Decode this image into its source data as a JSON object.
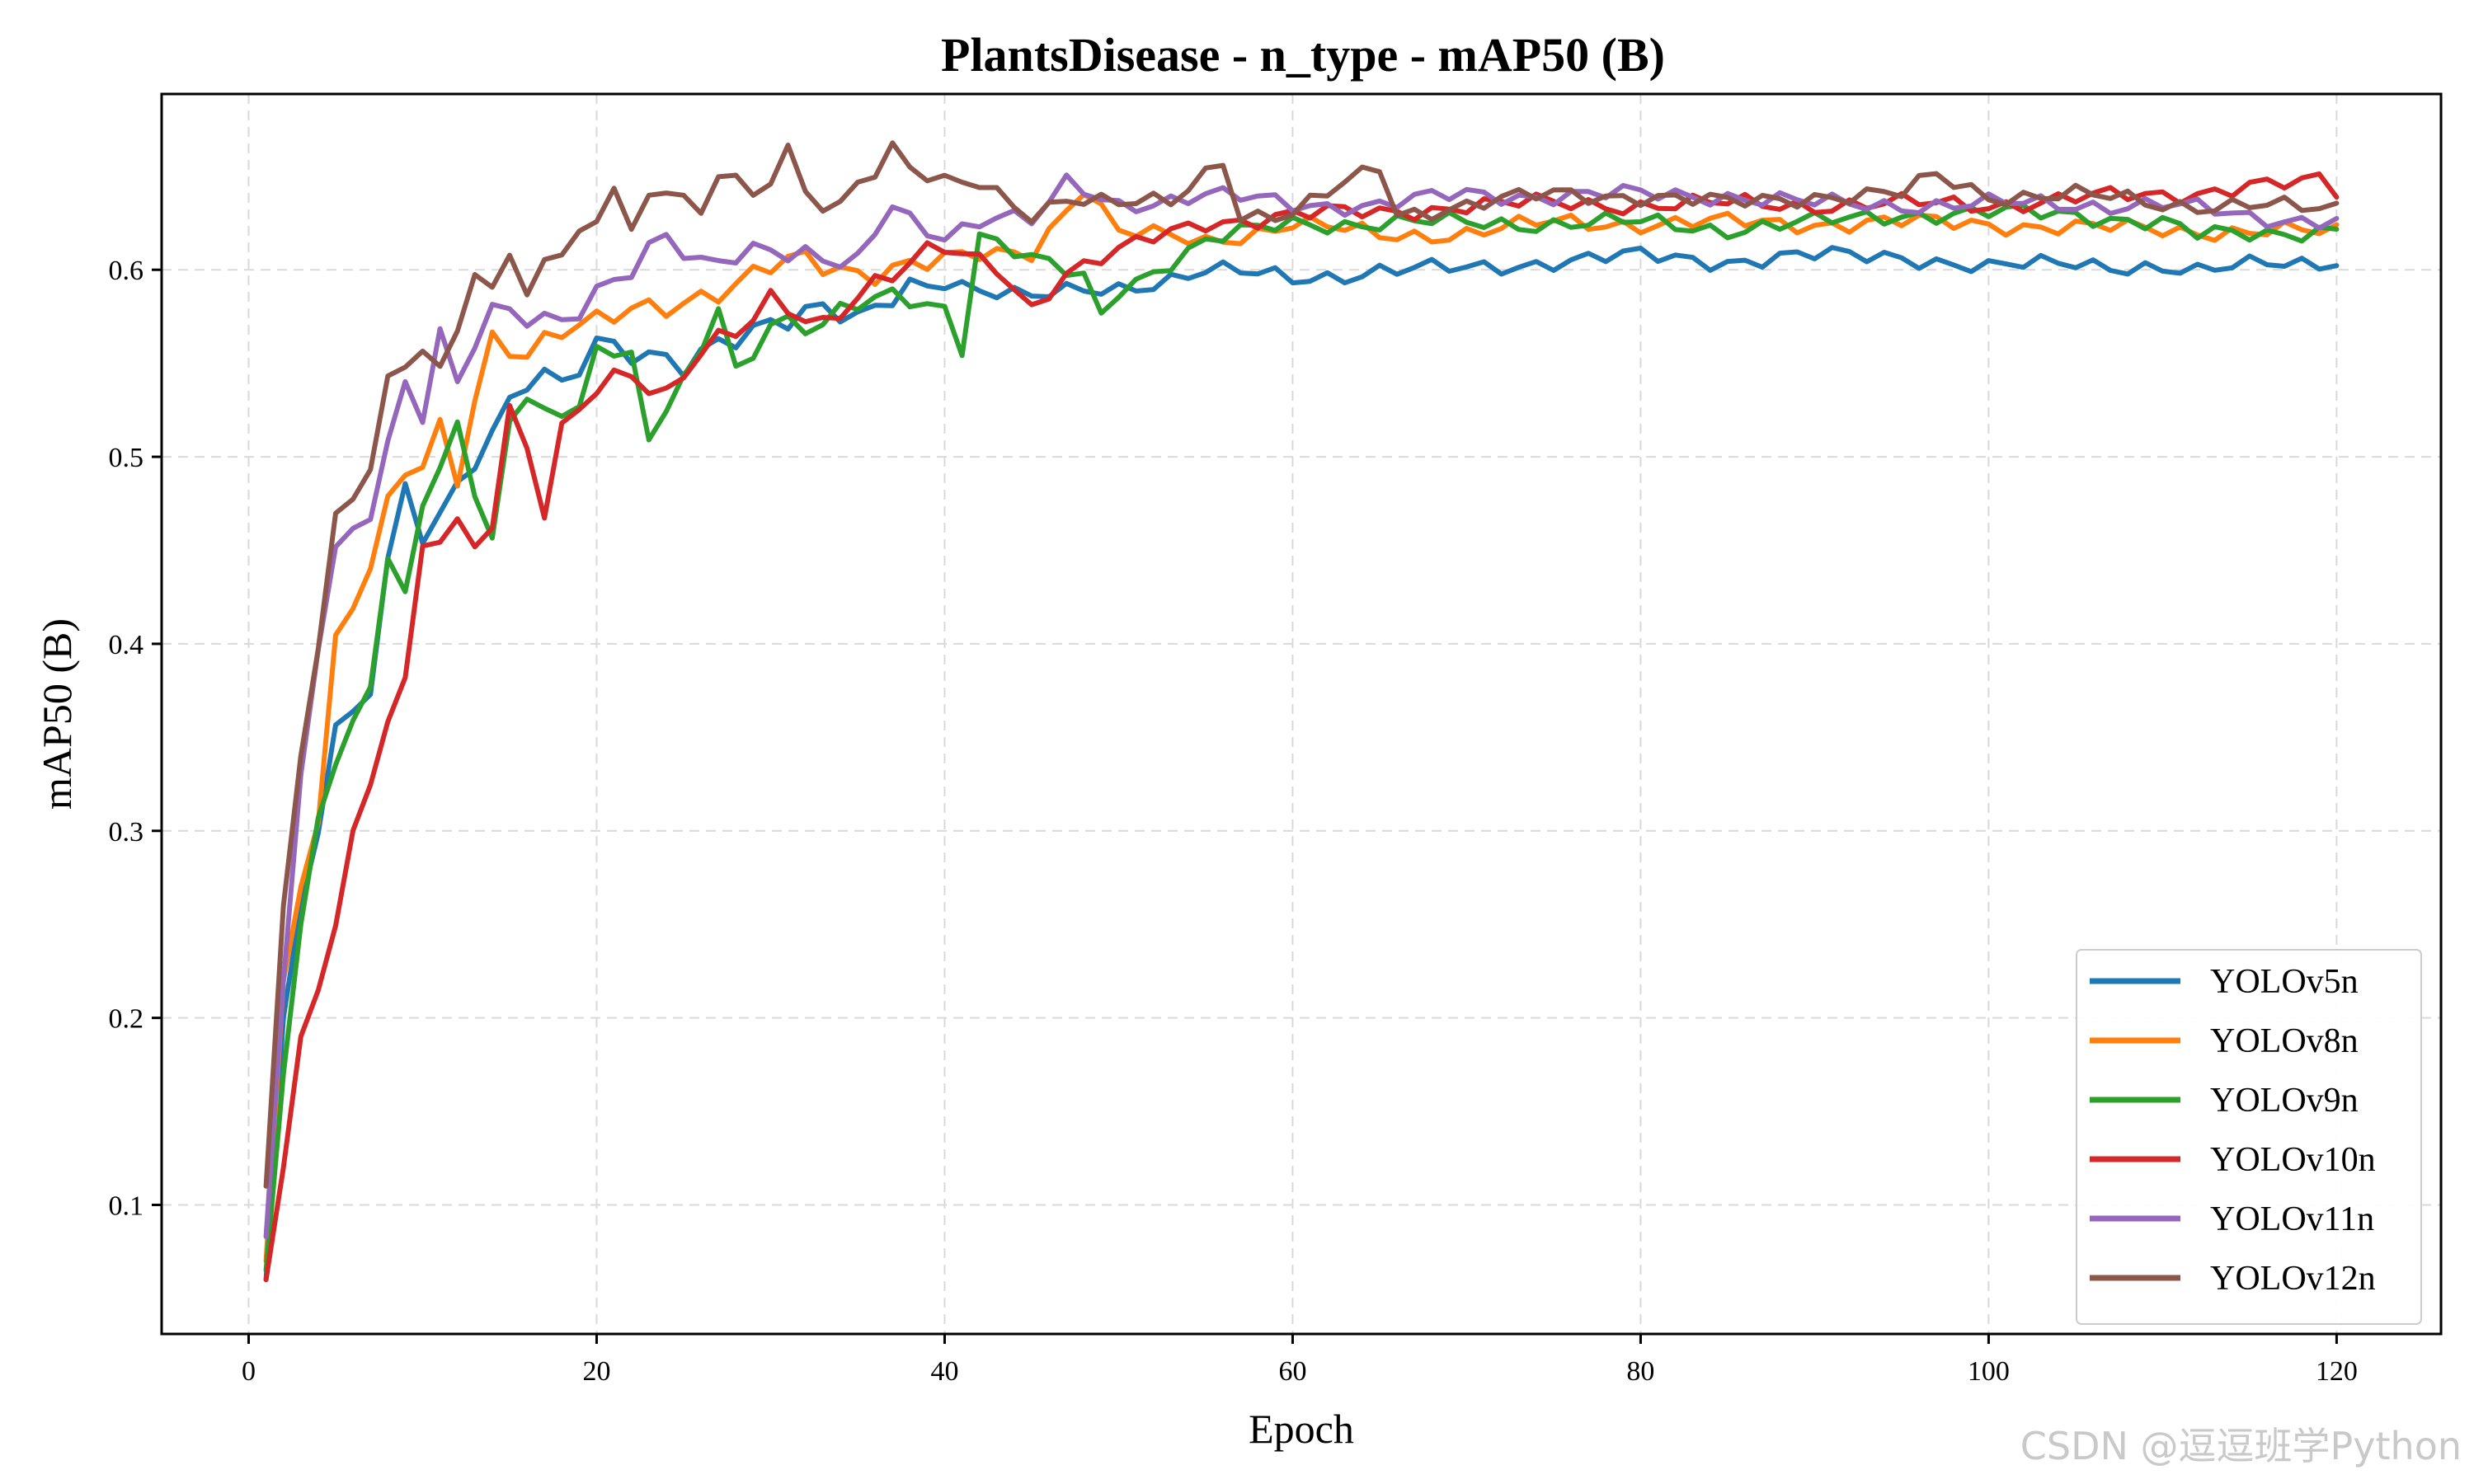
{
  "chart_data": {
    "type": "line",
    "title": "PlantsDisease - n_type - mAP50 (B)",
    "xlabel": "Epoch",
    "ylabel": "mAP50 (B)",
    "xlim": [
      -5,
      126
    ],
    "ylim": [
      0.031,
      0.694
    ],
    "x_ticks": [
      0,
      20,
      40,
      60,
      80,
      100,
      120
    ],
    "y_ticks": [
      0.1,
      0.2,
      0.3,
      0.4,
      0.5,
      0.6
    ],
    "grid": true,
    "legend_position": "lower-right",
    "series": [
      {
        "name": "YOLOv5n",
        "color": "#1f77b4",
        "anchors": [
          [
            1,
            0.06
          ],
          [
            2,
            0.2
          ],
          [
            3,
            0.26
          ],
          [
            4,
            0.3
          ],
          [
            5,
            0.357
          ],
          [
            6,
            0.36
          ],
          [
            7,
            0.38
          ],
          [
            8,
            0.45
          ],
          [
            9,
            0.484
          ],
          [
            10,
            0.46
          ],
          [
            12,
            0.48
          ],
          [
            14,
            0.51
          ],
          [
            16,
            0.54
          ],
          [
            17,
            0.547
          ],
          [
            18,
            0.54
          ],
          [
            20,
            0.565
          ],
          [
            22,
            0.555
          ],
          [
            25,
            0.545
          ],
          [
            27,
            0.56
          ],
          [
            30,
            0.575
          ],
          [
            33,
            0.58
          ],
          [
            35,
            0.57
          ],
          [
            38,
            0.59
          ],
          [
            40,
            0.595
          ],
          [
            45,
            0.585
          ],
          [
            50,
            0.59
          ],
          [
            55,
            0.6
          ],
          [
            60,
            0.595
          ],
          [
            65,
            0.6
          ],
          [
            70,
            0.6
          ],
          [
            75,
            0.605
          ],
          [
            80,
            0.607
          ],
          [
            85,
            0.605
          ],
          [
            90,
            0.607
          ],
          [
            95,
            0.608
          ],
          [
            100,
            0.6
          ],
          [
            105,
            0.605
          ],
          [
            110,
            0.6
          ],
          [
            112,
            0.597
          ],
          [
            116,
            0.606
          ],
          [
            120,
            0.604
          ]
        ]
      },
      {
        "name": "YOLOv8n",
        "color": "#ff7f0e",
        "anchors": [
          [
            1,
            0.07
          ],
          [
            2,
            0.22
          ],
          [
            3,
            0.27
          ],
          [
            4,
            0.31
          ],
          [
            5,
            0.4
          ],
          [
            6,
            0.42
          ],
          [
            7,
            0.44
          ],
          [
            8,
            0.47
          ],
          [
            9,
            0.49
          ],
          [
            10,
            0.495
          ],
          [
            11,
            0.515
          ],
          [
            12,
            0.49
          ],
          [
            13,
            0.535
          ],
          [
            14,
            0.565
          ],
          [
            16,
            0.555
          ],
          [
            18,
            0.565
          ],
          [
            20,
            0.57
          ],
          [
            22,
            0.58
          ],
          [
            25,
            0.585
          ],
          [
            28,
            0.59
          ],
          [
            30,
            0.6
          ],
          [
            32,
            0.605
          ],
          [
            35,
            0.6
          ],
          [
            40,
            0.605
          ],
          [
            45,
            0.61
          ],
          [
            48,
            0.645
          ],
          [
            50,
            0.62
          ],
          [
            55,
            0.615
          ],
          [
            60,
            0.625
          ],
          [
            65,
            0.618
          ],
          [
            70,
            0.62
          ],
          [
            75,
            0.625
          ],
          [
            80,
            0.625
          ],
          [
            85,
            0.625
          ],
          [
            90,
            0.625
          ],
          [
            95,
            0.625
          ],
          [
            100,
            0.625
          ],
          [
            105,
            0.622
          ],
          [
            110,
            0.622
          ],
          [
            115,
            0.62
          ],
          [
            120,
            0.62
          ]
        ]
      },
      {
        "name": "YOLOv9n",
        "color": "#2ca02c",
        "anchors": [
          [
            1,
            0.065
          ],
          [
            2,
            0.17
          ],
          [
            3,
            0.25
          ],
          [
            4,
            0.3
          ],
          [
            5,
            0.335
          ],
          [
            6,
            0.365
          ],
          [
            7,
            0.375
          ],
          [
            8,
            0.45
          ],
          [
            9,
            0.435
          ],
          [
            10,
            0.47
          ],
          [
            12,
            0.52
          ],
          [
            13,
            0.47
          ],
          [
            14,
            0.455
          ],
          [
            15,
            0.52
          ],
          [
            17,
            0.53
          ],
          [
            19,
            0.525
          ],
          [
            20,
            0.565
          ],
          [
            22,
            0.55
          ],
          [
            23,
            0.51
          ],
          [
            25,
            0.535
          ],
          [
            27,
            0.58
          ],
          [
            28,
            0.545
          ],
          [
            30,
            0.575
          ],
          [
            33,
            0.57
          ],
          [
            35,
            0.58
          ],
          [
            38,
            0.585
          ],
          [
            40,
            0.58
          ],
          [
            41,
            0.56
          ],
          [
            42,
            0.62
          ],
          [
            45,
            0.605
          ],
          [
            48,
            0.595
          ],
          [
            49,
            0.575
          ],
          [
            50,
            0.59
          ],
          [
            55,
            0.615
          ],
          [
            60,
            0.625
          ],
          [
            65,
            0.625
          ],
          [
            70,
            0.625
          ],
          [
            75,
            0.625
          ],
          [
            80,
            0.625
          ],
          [
            85,
            0.622
          ],
          [
            90,
            0.625
          ],
          [
            95,
            0.63
          ],
          [
            100,
            0.63
          ],
          [
            105,
            0.63
          ],
          [
            110,
            0.625
          ],
          [
            112,
            0.618
          ],
          [
            120,
            0.622
          ]
        ]
      },
      {
        "name": "YOLOv10n",
        "color": "#d62728",
        "anchors": [
          [
            1,
            0.06
          ],
          [
            2,
            0.12
          ],
          [
            3,
            0.19
          ],
          [
            4,
            0.215
          ],
          [
            5,
            0.255
          ],
          [
            6,
            0.295
          ],
          [
            7,
            0.32
          ],
          [
            8,
            0.36
          ],
          [
            9,
            0.375
          ],
          [
            10,
            0.45
          ],
          [
            11,
            0.46
          ],
          [
            12,
            0.465
          ],
          [
            13,
            0.455
          ],
          [
            14,
            0.47
          ],
          [
            15,
            0.525
          ],
          [
            16,
            0.505
          ],
          [
            17,
            0.47
          ],
          [
            18,
            0.51
          ],
          [
            20,
            0.535
          ],
          [
            22,
            0.545
          ],
          [
            24,
            0.535
          ],
          [
            26,
            0.56
          ],
          [
            28,
            0.565
          ],
          [
            30,
            0.58
          ],
          [
            33,
            0.57
          ],
          [
            35,
            0.59
          ],
          [
            38,
            0.605
          ],
          [
            40,
            0.61
          ],
          [
            43,
            0.6
          ],
          [
            45,
            0.58
          ],
          [
            47,
            0.6
          ],
          [
            50,
            0.61
          ],
          [
            55,
            0.625
          ],
          [
            60,
            0.63
          ],
          [
            65,
            0.63
          ],
          [
            70,
            0.635
          ],
          [
            75,
            0.635
          ],
          [
            80,
            0.635
          ],
          [
            85,
            0.635
          ],
          [
            90,
            0.635
          ],
          [
            95,
            0.635
          ],
          [
            100,
            0.635
          ],
          [
            105,
            0.638
          ],
          [
            110,
            0.64
          ],
          [
            115,
            0.645
          ],
          [
            118,
            0.645
          ],
          [
            119,
            0.648
          ],
          [
            120,
            0.642
          ]
        ]
      },
      {
        "name": "YOLOv11n",
        "color": "#9467bd",
        "anchors": [
          [
            1,
            0.083
          ],
          [
            2,
            0.22
          ],
          [
            3,
            0.33
          ],
          [
            4,
            0.4
          ],
          [
            5,
            0.45
          ],
          [
            6,
            0.46
          ],
          [
            7,
            0.475
          ],
          [
            8,
            0.51
          ],
          [
            9,
            0.54
          ],
          [
            10,
            0.525
          ],
          [
            11,
            0.565
          ],
          [
            12,
            0.535
          ],
          [
            13,
            0.56
          ],
          [
            14,
            0.575
          ],
          [
            16,
            0.575
          ],
          [
            18,
            0.575
          ],
          [
            20,
            0.59
          ],
          [
            22,
            0.6
          ],
          [
            24,
            0.615
          ],
          [
            26,
            0.6
          ],
          [
            28,
            0.61
          ],
          [
            30,
            0.615
          ],
          [
            33,
            0.605
          ],
          [
            35,
            0.6
          ],
          [
            37,
            0.635
          ],
          [
            38,
            0.625
          ],
          [
            40,
            0.62
          ],
          [
            43,
            0.63
          ],
          [
            45,
            0.625
          ],
          [
            47,
            0.645
          ],
          [
            50,
            0.635
          ],
          [
            55,
            0.64
          ],
          [
            60,
            0.635
          ],
          [
            65,
            0.635
          ],
          [
            70,
            0.64
          ],
          [
            75,
            0.64
          ],
          [
            80,
            0.64
          ],
          [
            85,
            0.64
          ],
          [
            90,
            0.635
          ],
          [
            95,
            0.635
          ],
          [
            100,
            0.635
          ],
          [
            105,
            0.635
          ],
          [
            110,
            0.635
          ],
          [
            115,
            0.628
          ],
          [
            120,
            0.627
          ]
        ]
      },
      {
        "name": "YOLOv12n",
        "color": "#8c564b",
        "anchors": [
          [
            1,
            0.11
          ],
          [
            2,
            0.26
          ],
          [
            3,
            0.34
          ],
          [
            4,
            0.4
          ],
          [
            5,
            0.465
          ],
          [
            6,
            0.48
          ],
          [
            7,
            0.49
          ],
          [
            8,
            0.535
          ],
          [
            9,
            0.55
          ],
          [
            10,
            0.555
          ],
          [
            11,
            0.545
          ],
          [
            12,
            0.575
          ],
          [
            13,
            0.6
          ],
          [
            14,
            0.59
          ],
          [
            15,
            0.615
          ],
          [
            16,
            0.585
          ],
          [
            17,
            0.6
          ],
          [
            18,
            0.61
          ],
          [
            20,
            0.62
          ],
          [
            21,
            0.648
          ],
          [
            22,
            0.62
          ],
          [
            23,
            0.64
          ],
          [
            24,
            0.65
          ],
          [
            26,
            0.63
          ],
          [
            27,
            0.655
          ],
          [
            29,
            0.635
          ],
          [
            31,
            0.66
          ],
          [
            32,
            0.64
          ],
          [
            34,
            0.635
          ],
          [
            35,
            0.65
          ],
          [
            37,
            0.665
          ],
          [
            38,
            0.655
          ],
          [
            40,
            0.645
          ],
          [
            42,
            0.645
          ],
          [
            45,
            0.63
          ],
          [
            47,
            0.64
          ],
          [
            50,
            0.635
          ],
          [
            53,
            0.635
          ],
          [
            56,
            0.66
          ],
          [
            57,
            0.63
          ],
          [
            60,
            0.63
          ],
          [
            65,
            0.655
          ],
          [
            66,
            0.63
          ],
          [
            70,
            0.635
          ],
          [
            75,
            0.64
          ],
          [
            80,
            0.64
          ],
          [
            85,
            0.635
          ],
          [
            90,
            0.64
          ],
          [
            95,
            0.64
          ],
          [
            97,
            0.65
          ],
          [
            100,
            0.64
          ],
          [
            105,
            0.64
          ],
          [
            110,
            0.635
          ],
          [
            115,
            0.635
          ],
          [
            118,
            0.632
          ],
          [
            120,
            0.632
          ]
        ]
      }
    ]
  },
  "watermark": "CSDN @逗逗班学Python"
}
